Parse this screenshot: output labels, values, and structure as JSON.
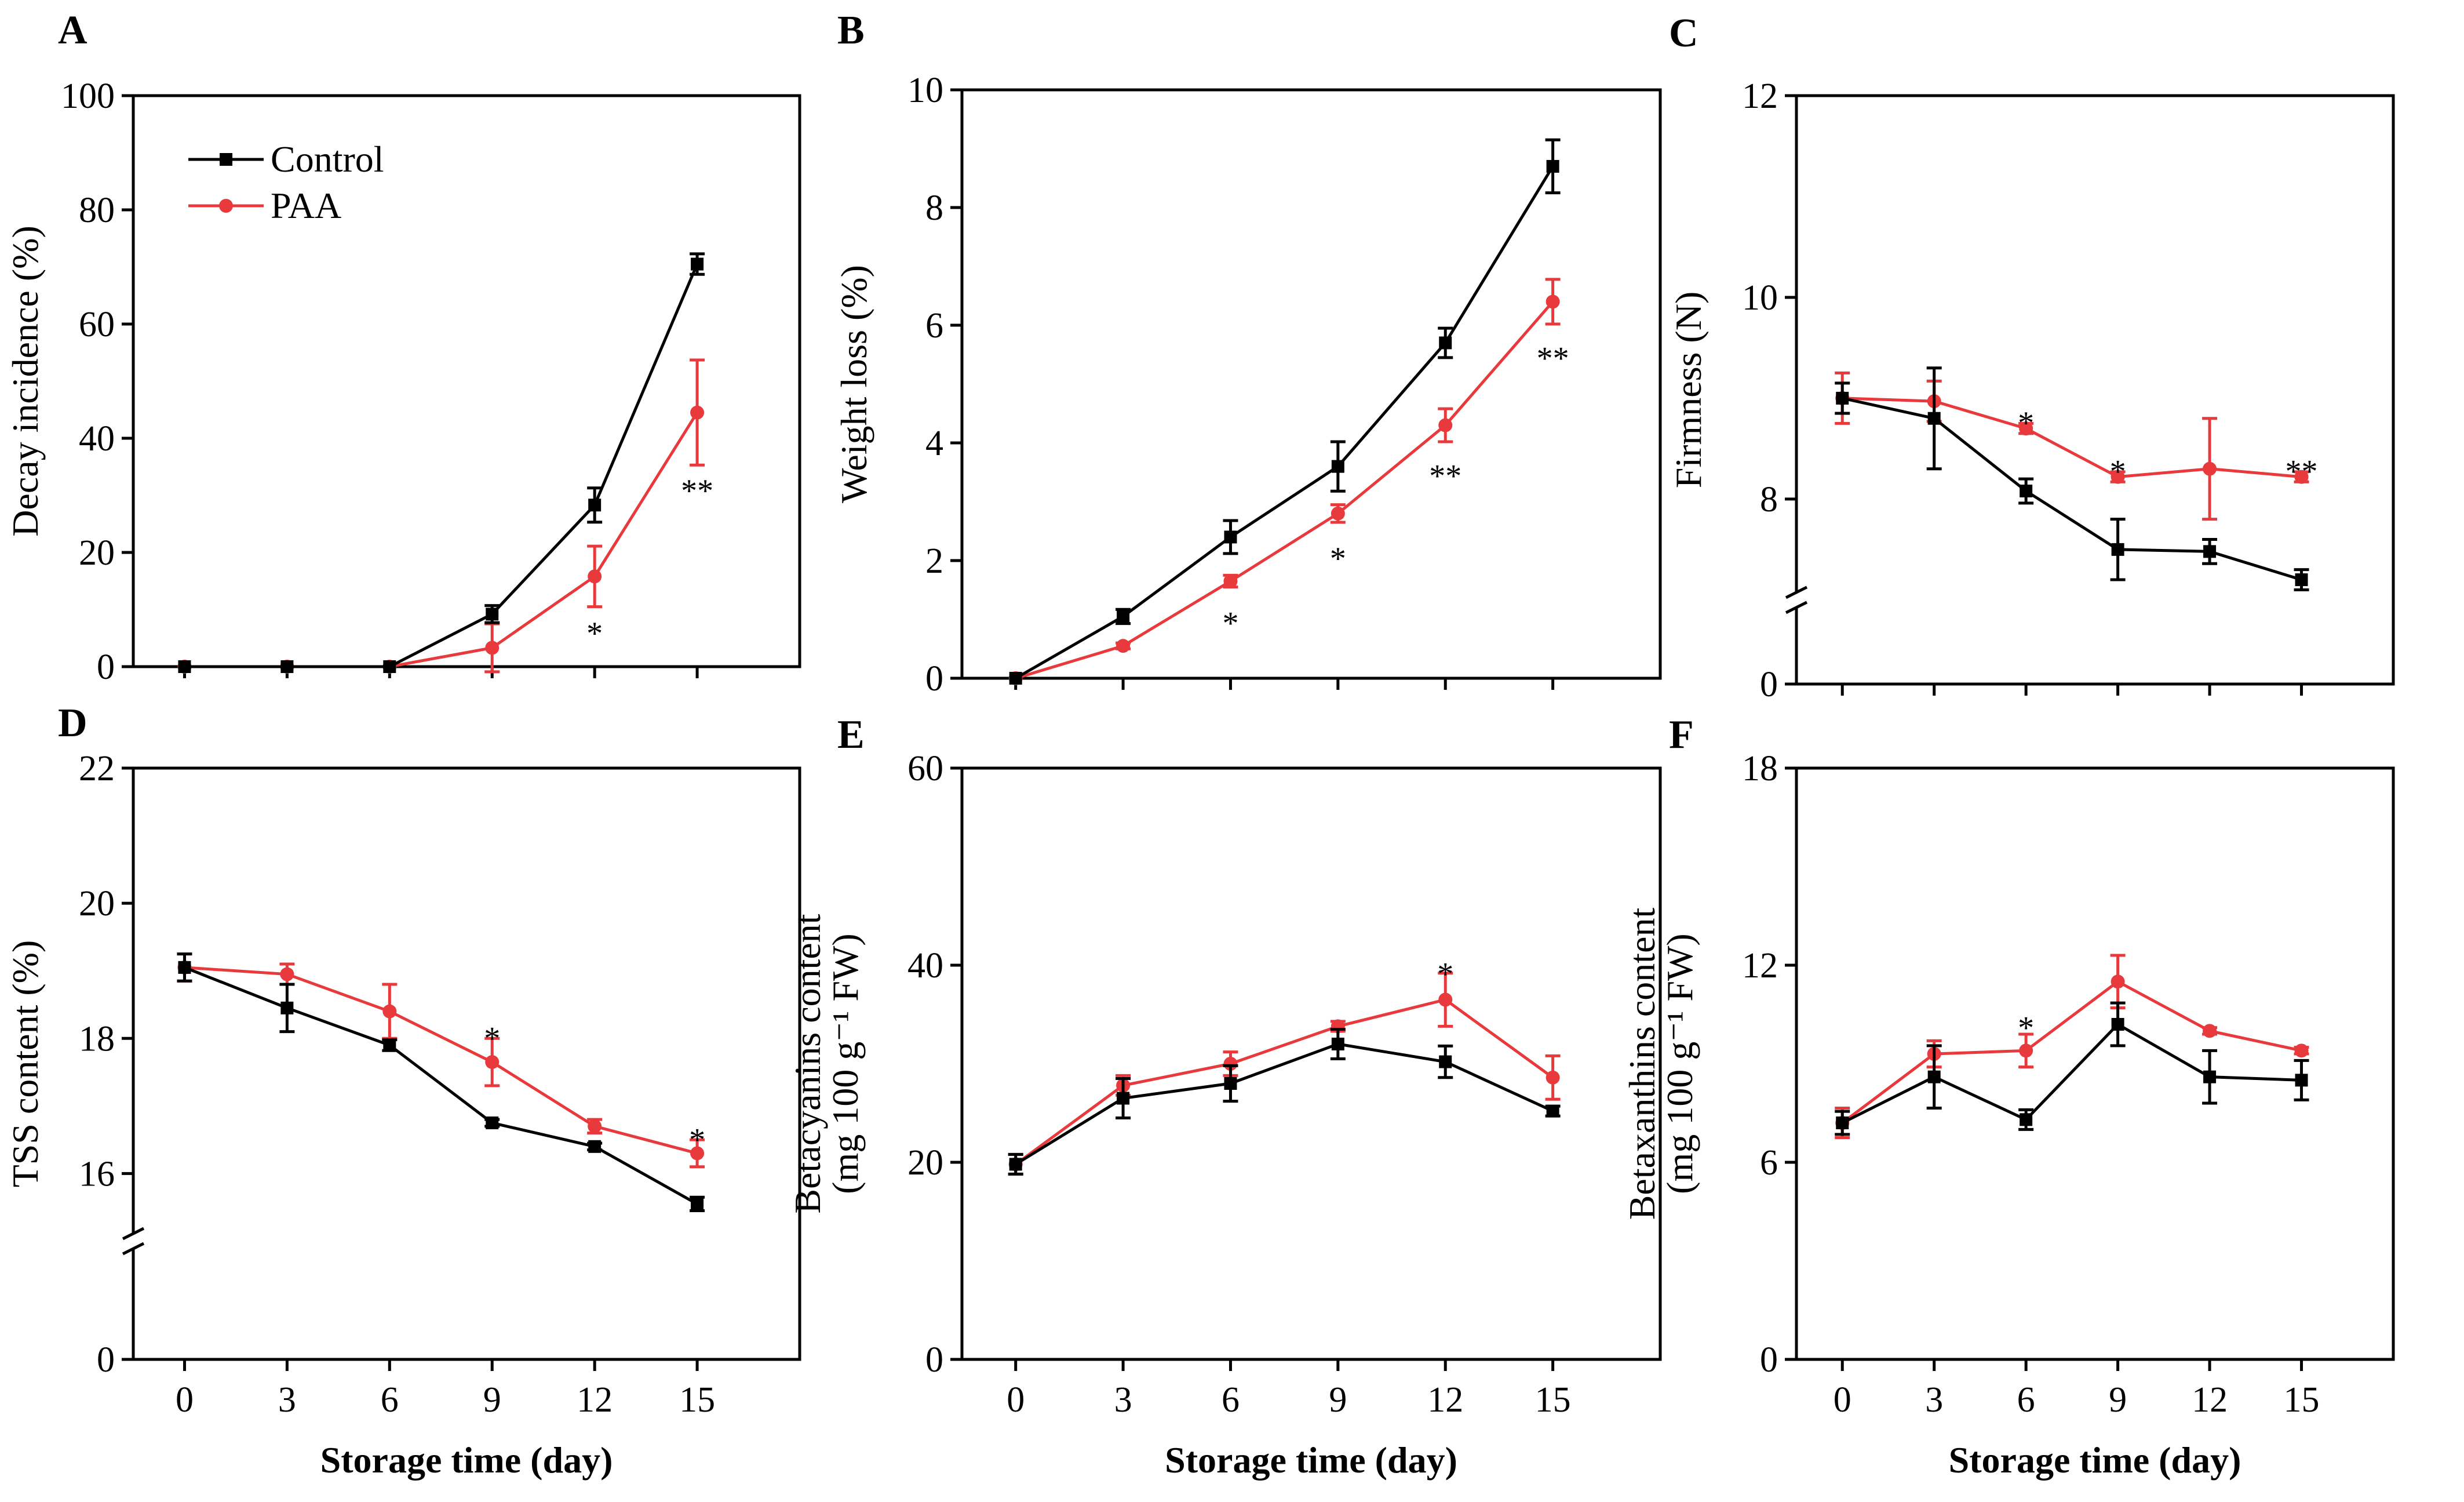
{
  "colors": {
    "Control": "#000000",
    "PAA": "#e8393c"
  },
  "legend": {
    "control_label": "Control",
    "paa_label": "PAA",
    "position": "top-left"
  },
  "chart_data": [
    {
      "id": "A",
      "type": "line",
      "letter": "A",
      "ylabel": "Decay incidence (%)",
      "ylabel2": "",
      "xlabel": "",
      "ylim": [
        0,
        100
      ],
      "yticks": [
        0,
        20,
        40,
        60,
        80,
        100
      ],
      "ybreak": null,
      "x": [
        0,
        3,
        6,
        9,
        12,
        15
      ],
      "xlim": [
        -1.5,
        18
      ],
      "xticks": [],
      "series": [
        {
          "name": "Control",
          "values": [
            0,
            0,
            0,
            9.2,
            28.3,
            70.5
          ],
          "errors": [
            0,
            0,
            0,
            1.5,
            3.0,
            1.8
          ]
        },
        {
          "name": "PAA",
          "values": [
            0,
            0,
            0,
            3.3,
            15.8,
            44.5
          ],
          "errors": [
            0,
            0,
            0,
            4.2,
            5.3,
            9.2
          ]
        }
      ],
      "significance": [
        {
          "x": 12,
          "mark": "*",
          "y": 7
        },
        {
          "x": 15,
          "mark": "**",
          "y": 32
        }
      ]
    },
    {
      "id": "B",
      "type": "line",
      "letter": "B",
      "ylabel": "Weight loss (%)",
      "ylabel2": "",
      "xlabel": "",
      "ylim": [
        0,
        10
      ],
      "yticks": [
        0,
        2,
        4,
        6,
        8,
        10
      ],
      "ybreak": null,
      "x": [
        0,
        3,
        6,
        9,
        12,
        15
      ],
      "xlim": [
        -1.5,
        18
      ],
      "xticks": [],
      "series": [
        {
          "name": "Control",
          "values": [
            0,
            1.05,
            2.4,
            3.6,
            5.7,
            8.7
          ],
          "errors": [
            0,
            0.12,
            0.28,
            0.42,
            0.25,
            0.45
          ]
        },
        {
          "name": "PAA",
          "values": [
            0,
            0.55,
            1.65,
            2.8,
            4.3,
            6.4
          ],
          "errors": [
            0,
            0.05,
            0.1,
            0.15,
            0.28,
            0.38
          ]
        }
      ],
      "significance": [
        {
          "x": 6,
          "mark": "*",
          "y": 1.05
        },
        {
          "x": 9,
          "mark": "*",
          "y": 2.15
        },
        {
          "x": 12,
          "mark": "**",
          "y": 3.55
        },
        {
          "x": 15,
          "mark": "**",
          "y": 5.55
        }
      ]
    },
    {
      "id": "C",
      "type": "line",
      "letter": "C",
      "ylabel": "Firmness (N)",
      "ylabel2": "",
      "xlabel": "",
      "ylim": [
        0,
        12
      ],
      "yticks": [
        0,
        8,
        10,
        12
      ],
      "ybreak": {
        "break_at": 7,
        "zero_frac": 0.143
      },
      "x": [
        0,
        3,
        6,
        9,
        12,
        15
      ],
      "xlim": [
        -1.5,
        18
      ],
      "xticks": [],
      "series": [
        {
          "name": "Control",
          "values": [
            9.0,
            8.8,
            8.08,
            7.5,
            7.48,
            7.2
          ],
          "errors": [
            0.15,
            0.5,
            0.12,
            0.3,
            0.12,
            0.1
          ]
        },
        {
          "name": "PAA",
          "values": [
            9.0,
            8.97,
            8.7,
            8.22,
            8.3,
            8.22
          ],
          "errors": [
            0.25,
            0.2,
            0.05,
            0.05,
            0.5,
            0.05
          ]
        }
      ],
      "significance": [
        {
          "x": 6,
          "mark": "*",
          "y": 8.82
        },
        {
          "x": 9,
          "mark": "*",
          "y": 8.34
        },
        {
          "x": 15,
          "mark": "**",
          "y": 8.34
        }
      ]
    },
    {
      "id": "D",
      "type": "line",
      "letter": "D",
      "ylabel": "TSS content (%)",
      "ylabel2": "",
      "xlabel": "Storage time (day)",
      "ylim": [
        0,
        22
      ],
      "yticks": [
        0,
        16,
        18,
        20,
        22
      ],
      "ybreak": {
        "break_at": 15,
        "zero_frac": 0.2
      },
      "x": [
        0,
        3,
        6,
        9,
        12,
        15
      ],
      "xlim": [
        -1.5,
        18
      ],
      "xticks": [
        0,
        3,
        6,
        9,
        12,
        15
      ],
      "series": [
        {
          "name": "Control",
          "values": [
            19.05,
            18.45,
            17.9,
            16.75,
            16.4,
            15.55
          ],
          "errors": [
            0.2,
            0.35,
            0.08,
            0.05,
            0.05,
            0.1
          ]
        },
        {
          "name": "PAA",
          "values": [
            19.05,
            18.95,
            18.4,
            17.65,
            16.7,
            16.3
          ],
          "errors": [
            0.2,
            0.15,
            0.4,
            0.35,
            0.1,
            0.2
          ]
        }
      ],
      "significance": [
        {
          "x": 9,
          "mark": "*",
          "y": 18.1
        },
        {
          "x": 15,
          "mark": "*",
          "y": 16.6
        }
      ]
    },
    {
      "id": "E",
      "type": "line",
      "letter": "E",
      "ylabel": "Betacyanins content",
      "ylabel2": "(mg 100 g⁻¹ FW)",
      "xlabel": "Storage time (day)",
      "ylim": [
        0,
        60
      ],
      "yticks": [
        0,
        20,
        40,
        60
      ],
      "ybreak": null,
      "x": [
        0,
        3,
        6,
        9,
        12,
        15
      ],
      "xlim": [
        -1.5,
        18
      ],
      "xticks": [
        0,
        3,
        6,
        9,
        12,
        15
      ],
      "series": [
        {
          "name": "Control",
          "values": [
            19.8,
            26.5,
            28.0,
            32.0,
            30.2,
            25.2
          ],
          "errors": [
            1.0,
            2.0,
            1.8,
            1.5,
            1.6,
            0.5
          ]
        },
        {
          "name": "PAA",
          "values": [
            19.8,
            27.8,
            30.0,
            33.8,
            36.5,
            28.6
          ],
          "errors": [
            1.0,
            1.0,
            1.2,
            0.5,
            2.7,
            2.2
          ]
        }
      ],
      "significance": [
        {
          "x": 12,
          "mark": "*",
          "y": 39.8
        }
      ]
    },
    {
      "id": "F",
      "type": "line",
      "letter": "F",
      "ylabel": "Betaxanthins content",
      "ylabel2": "(mg 100 g⁻¹ FW)",
      "xlabel": "Storage time (day)",
      "ylim": [
        0,
        18
      ],
      "yticks": [
        0,
        6,
        12,
        18
      ],
      "ybreak": null,
      "x": [
        0,
        3,
        6,
        9,
        12,
        15
      ],
      "xlim": [
        -1.5,
        18
      ],
      "xticks": [
        0,
        3,
        6,
        9,
        12,
        15
      ],
      "series": [
        {
          "name": "Control",
          "values": [
            7.2,
            8.6,
            7.3,
            10.2,
            8.6,
            8.5
          ],
          "errors": [
            0.35,
            0.95,
            0.3,
            0.65,
            0.8,
            0.6
          ]
        },
        {
          "name": "PAA",
          "values": [
            7.2,
            9.3,
            9.4,
            11.5,
            10.0,
            9.4
          ],
          "errors": [
            0.45,
            0.4,
            0.5,
            0.8,
            0.1,
            0.1
          ]
        }
      ],
      "significance": [
        {
          "x": 6,
          "mark": "*",
          "y": 10.3
        }
      ]
    }
  ]
}
